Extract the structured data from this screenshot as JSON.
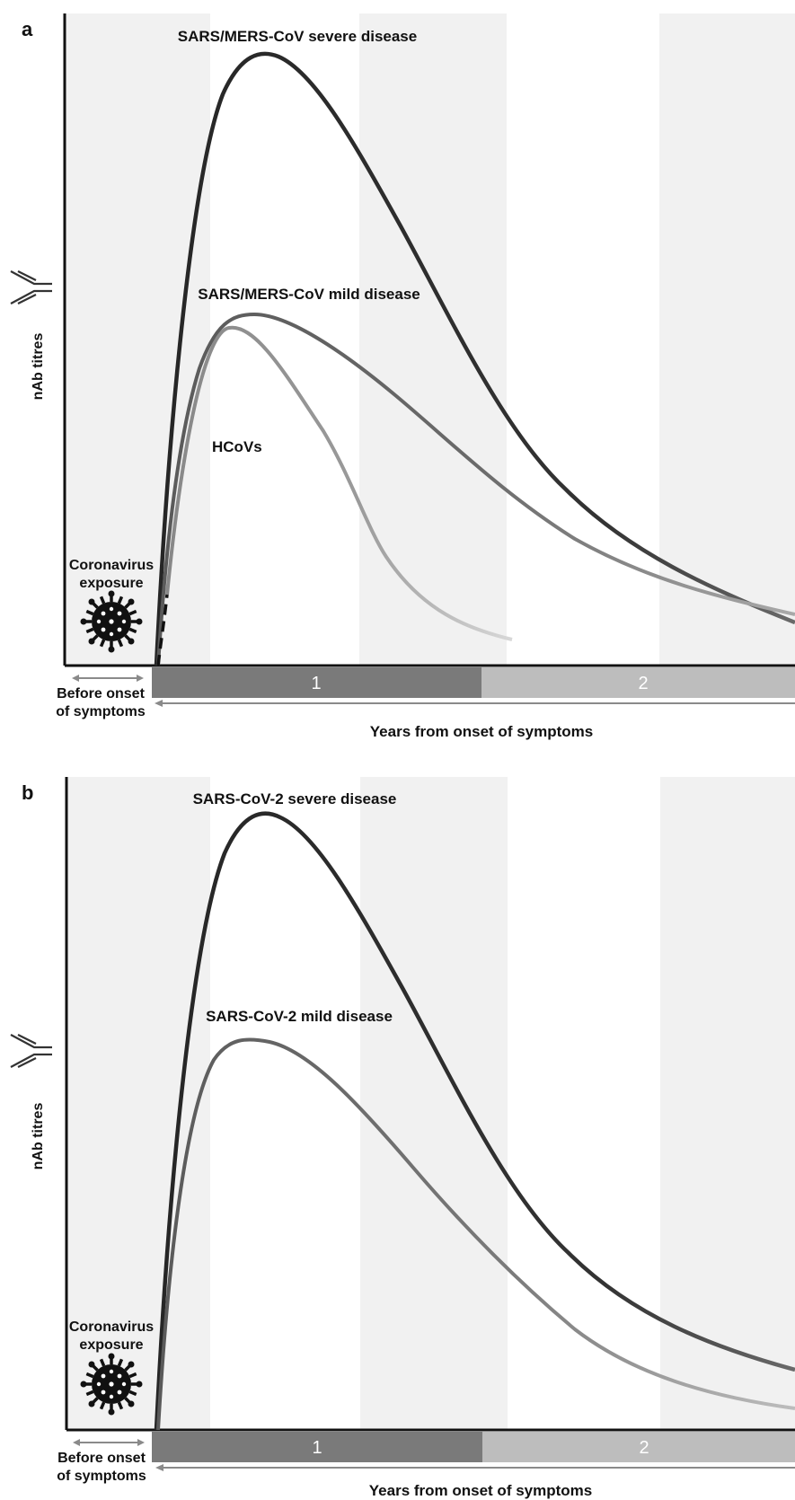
{
  "figure": {
    "panels": [
      {
        "letter": "a",
        "y_axis_label": "nAb titres",
        "exposure_line1": "Coronavirus",
        "exposure_line2": "exposure",
        "before_onset_line1": "Before onset",
        "before_onset_line2": "of symptoms",
        "timeline_labels": [
          "1",
          "2"
        ],
        "x_axis_label": "Years from onset of symptoms",
        "curves": [
          {
            "label": "SARS/MERS-CoV severe disease",
            "color": "#2f2f2f"
          },
          {
            "label": "SARS/MERS-CoV mild disease",
            "color": "#555555"
          },
          {
            "label": "HCoVs",
            "color": "#8c8c8c"
          }
        ]
      },
      {
        "letter": "b",
        "y_axis_label": "nAb titres",
        "exposure_line1": "Coronavirus",
        "exposure_line2": "exposure",
        "before_onset_line1": "Before onset",
        "before_onset_line2": "of symptoms",
        "timeline_labels": [
          "1",
          "2"
        ],
        "x_axis_label": "Years from onset of symptoms",
        "curves": [
          {
            "label": "SARS-CoV-2 severe disease",
            "color": "#2f2f2f"
          },
          {
            "label": "SARS-CoV-2 mild disease",
            "color": "#555555"
          }
        ]
      }
    ],
    "colors": {
      "band_light": "#f1f1f1",
      "timeline_dark": "#7a7a7a",
      "timeline_light": "#bdbdbd",
      "arrow": "#8a8a8a"
    }
  }
}
